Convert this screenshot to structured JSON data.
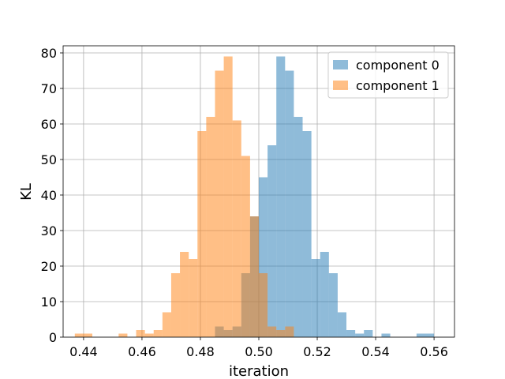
{
  "chart_data": {
    "type": "bar",
    "xlabel": "iteration",
    "ylabel": "KL",
    "xlim": [
      0.433,
      0.567
    ],
    "ylim": [
      0,
      82
    ],
    "xticks": [
      0.44,
      0.46,
      0.48,
      0.5,
      0.52,
      0.54,
      0.56
    ],
    "xtick_labels": [
      "0.44",
      "0.46",
      "0.48",
      "0.50",
      "0.52",
      "0.54",
      "0.56"
    ],
    "yticks": [
      0,
      10,
      20,
      30,
      40,
      50,
      60,
      70,
      80
    ],
    "ytick_labels": [
      "0",
      "10",
      "20",
      "30",
      "40",
      "50",
      "60",
      "70",
      "80"
    ],
    "grid": true,
    "legend_position": "upper right",
    "series": [
      {
        "name": "component 0",
        "color": "#1f77b4",
        "alpha": 0.5,
        "bin_width": 0.003,
        "bins": [
          [
            0.4865,
            3
          ],
          [
            0.4895,
            2
          ],
          [
            0.4925,
            3
          ],
          [
            0.4955,
            18
          ],
          [
            0.4985,
            34
          ],
          [
            0.5015,
            45
          ],
          [
            0.5045,
            54
          ],
          [
            0.5075,
            79
          ],
          [
            0.5105,
            75
          ],
          [
            0.5135,
            62
          ],
          [
            0.5165,
            58
          ],
          [
            0.5195,
            22
          ],
          [
            0.5225,
            24
          ],
          [
            0.5255,
            18
          ],
          [
            0.5285,
            7
          ],
          [
            0.5315,
            2
          ],
          [
            0.5345,
            1
          ],
          [
            0.5375,
            2
          ],
          [
            0.5435,
            1
          ],
          [
            0.5555,
            1
          ],
          [
            0.5585,
            1
          ]
        ]
      },
      {
        "name": "component 1",
        "color": "#ff7f0e",
        "alpha": 0.5,
        "bin_width": 0.003,
        "bins": [
          [
            0.4385,
            1
          ],
          [
            0.4415,
            1
          ],
          [
            0.4535,
            1
          ],
          [
            0.4595,
            2
          ],
          [
            0.4625,
            1
          ],
          [
            0.4655,
            2
          ],
          [
            0.4685,
            7
          ],
          [
            0.4715,
            18
          ],
          [
            0.4745,
            24
          ],
          [
            0.4775,
            22
          ],
          [
            0.4805,
            58
          ],
          [
            0.4835,
            62
          ],
          [
            0.4865,
            75
          ],
          [
            0.4895,
            79
          ],
          [
            0.4925,
            61
          ],
          [
            0.4955,
            51
          ],
          [
            0.4985,
            34
          ],
          [
            0.5015,
            18
          ],
          [
            0.5045,
            3
          ],
          [
            0.5075,
            2
          ],
          [
            0.5105,
            3
          ]
        ]
      }
    ]
  }
}
